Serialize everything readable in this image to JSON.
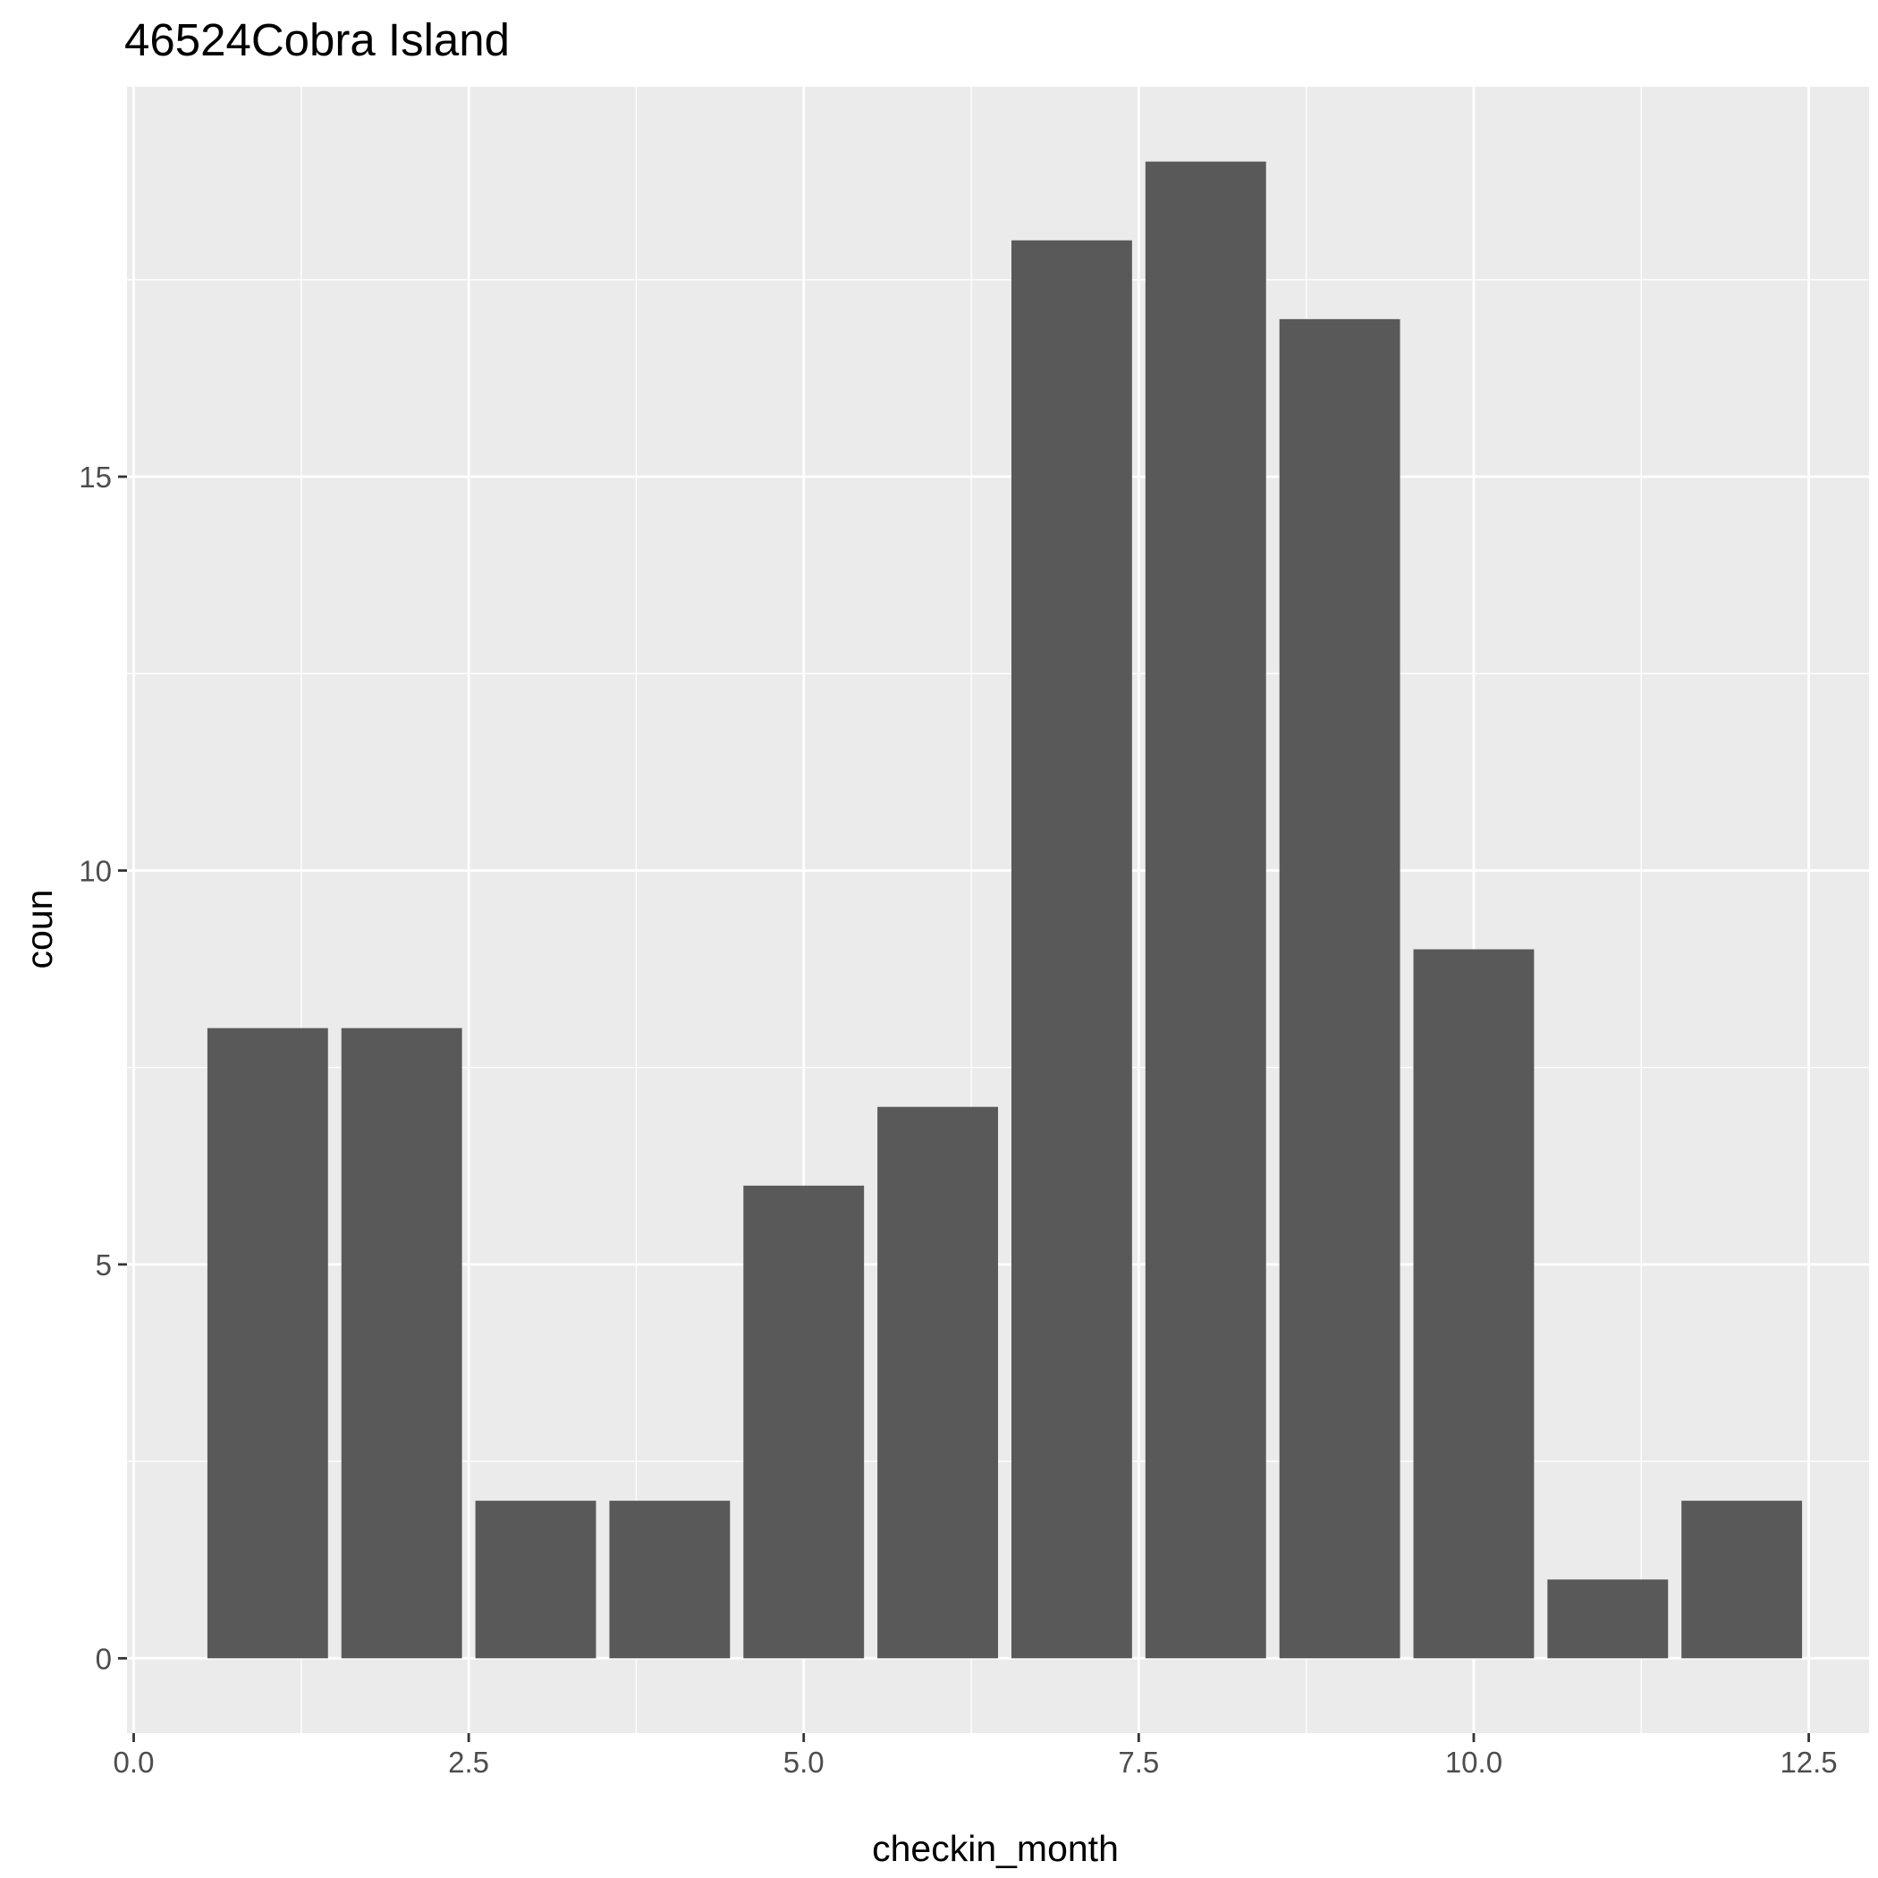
{
  "chart_data": {
    "type": "bar",
    "title": "46524Cobra Island",
    "xlabel": "checkin_month",
    "ylabel": "coun",
    "x": [
      1,
      2,
      3,
      4,
      5,
      6,
      7,
      8,
      9,
      10,
      11,
      12
    ],
    "values": [
      8,
      8,
      2,
      2,
      6,
      7,
      18,
      19,
      17,
      9,
      1,
      2
    ],
    "xlim": [
      -0.05,
      12.95
    ],
    "ylim": [
      -0.95,
      19.95
    ],
    "x_ticks": [
      0.0,
      2.5,
      5.0,
      7.5,
      10.0,
      12.5
    ],
    "x_tick_labels": [
      "0.0",
      "2.5",
      "5.0",
      "7.5",
      "10.0",
      "12.5"
    ],
    "y_ticks": [
      0,
      5,
      10,
      15
    ],
    "y_tick_labels": [
      "0",
      "5",
      "10",
      "15"
    ],
    "bar_width": 0.9,
    "bar_color": "#595959",
    "panel_background": "#ebebeb",
    "grid": true,
    "legend": "none"
  }
}
